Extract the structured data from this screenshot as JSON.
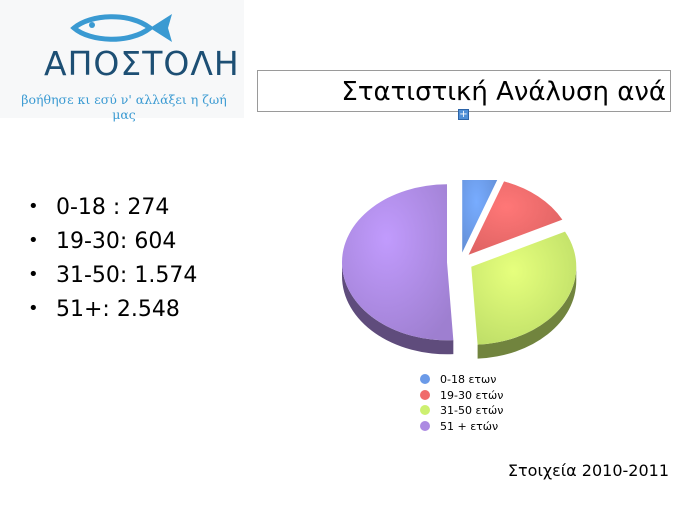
{
  "logo": {
    "wordmark": "ΑΠΟΣΤΟΛΗ",
    "tagline": "βοήθησε κι εσύ ν' αλλάξει η ζωή μας",
    "fish_color": "#3a9ad2",
    "text_color": "#1d4f74"
  },
  "title": "Στατιστική Ανάλυση ανά",
  "bullets": [
    "0-18 : 274",
    "19-30: 604",
    "31-50: 1.574",
    "51+: 2.548"
  ],
  "chart_data": {
    "type": "pie",
    "title": "",
    "categories": [
      "0-18 ετων",
      "19-30 ετών",
      "31-50 ετών",
      "51 + ετών"
    ],
    "values": [
      274,
      604,
      1574,
      2548
    ],
    "colors": [
      "#6b9ae8",
      "#f06a6a",
      "#cdf070",
      "#ac8ae2"
    ],
    "exploded": true,
    "three_d": true,
    "legend_position": "bottom"
  },
  "source": "Στοιχεία 2010-2011",
  "icons": {
    "logo": "fish-icon",
    "handle": "plus-handle-icon"
  }
}
